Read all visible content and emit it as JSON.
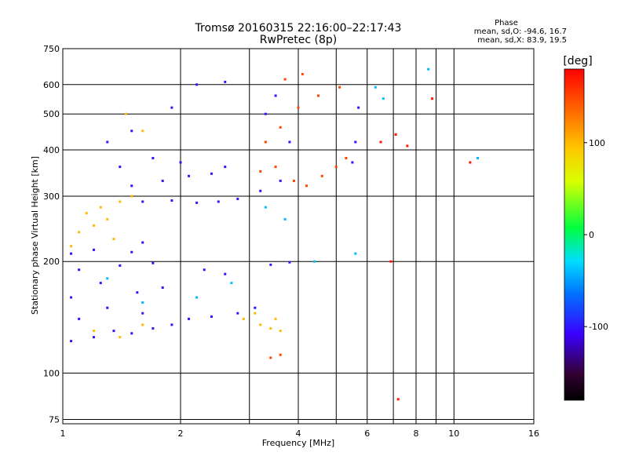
{
  "chart_data": {
    "type": "scatter",
    "title": "Tromsø 20160315 22:16:00–22:17:43",
    "subtitle": "RwPretec (8p)",
    "xlabel": "Frequency [MHz]",
    "ylabel": "Stationary phase Virtual Height [km]",
    "x_scale": "log",
    "y_scale": "log",
    "xlim": [
      1,
      16
    ],
    "ylim": [
      73,
      750
    ],
    "x_ticks": [
      "1",
      "2",
      "4",
      "6",
      "8",
      "10",
      "16"
    ],
    "y_ticks": [
      "75",
      "100",
      "200",
      "300",
      "400",
      "500",
      "600",
      "750"
    ],
    "phase_header": "Phase",
    "phase_stats": [
      "mean, sd,O: -94.6, 16.7",
      "mean, sd,X: 83.9, 19.5"
    ],
    "colorbar": {
      "label": "[deg]",
      "range": [
        -180,
        180
      ],
      "ticks": [
        "100",
        "0",
        "-100"
      ],
      "tick_values": [
        100,
        0,
        -100
      ]
    },
    "clusters": [
      {
        "phase": -100,
        "points": [
          [
            1.05,
            122
          ],
          [
            1.2,
            125
          ],
          [
            1.35,
            130
          ],
          [
            1.5,
            128
          ],
          [
            1.7,
            132
          ],
          [
            1.9,
            135
          ],
          [
            1.1,
            140
          ],
          [
            1.3,
            150
          ],
          [
            1.6,
            145
          ],
          [
            1.05,
            160
          ],
          [
            1.25,
            175
          ],
          [
            1.55,
            165
          ],
          [
            1.8,
            170
          ],
          [
            1.1,
            190
          ],
          [
            1.4,
            195
          ],
          [
            1.7,
            198
          ],
          [
            1.05,
            210
          ],
          [
            1.2,
            215
          ],
          [
            1.5,
            212
          ],
          [
            1.6,
            225
          ],
          [
            2.1,
            140
          ],
          [
            2.4,
            142
          ],
          [
            2.8,
            145
          ],
          [
            3.1,
            150
          ],
          [
            2.3,
            190
          ],
          [
            2.6,
            185
          ],
          [
            3.4,
            196
          ],
          [
            3.8,
            199
          ]
        ]
      },
      {
        "phase": -100,
        "points": [
          [
            1.6,
            290
          ],
          [
            1.9,
            292
          ],
          [
            2.2,
            288
          ],
          [
            2.5,
            290
          ],
          [
            2.8,
            295
          ],
          [
            3.2,
            310
          ],
          [
            3.6,
            330
          ],
          [
            1.5,
            320
          ],
          [
            1.8,
            330
          ],
          [
            2.1,
            340
          ],
          [
            2.4,
            345
          ],
          [
            1.4,
            360
          ],
          [
            1.7,
            380
          ],
          [
            2.0,
            370
          ],
          [
            2.6,
            360
          ],
          [
            1.3,
            420
          ],
          [
            1.5,
            450
          ],
          [
            1.9,
            520
          ],
          [
            2.2,
            600
          ],
          [
            2.6,
            610
          ],
          [
            3.3,
            500
          ],
          [
            3.5,
            560
          ],
          [
            3.8,
            420
          ],
          [
            5.5,
            370
          ],
          [
            5.6,
            420
          ],
          [
            5.7,
            520
          ]
        ]
      },
      {
        "phase": 100,
        "points": [
          [
            1.1,
            240
          ],
          [
            1.2,
            250
          ],
          [
            1.3,
            260
          ],
          [
            1.15,
            270
          ],
          [
            1.25,
            280
          ],
          [
            1.35,
            230
          ],
          [
            1.05,
            220
          ],
          [
            1.4,
            290
          ],
          [
            1.5,
            300
          ],
          [
            1.6,
            450
          ],
          [
            1.45,
            500
          ],
          [
            1.2,
            130
          ],
          [
            1.4,
            125
          ],
          [
            1.6,
            135
          ],
          [
            2.9,
            140
          ],
          [
            3.2,
            135
          ],
          [
            3.4,
            132
          ],
          [
            3.6,
            130
          ],
          [
            3.1,
            145
          ],
          [
            3.5,
            140
          ]
        ]
      },
      {
        "phase": 150,
        "points": [
          [
            3.2,
            350
          ],
          [
            3.5,
            360
          ],
          [
            3.9,
            330
          ],
          [
            4.2,
            320
          ],
          [
            4.6,
            340
          ],
          [
            5.0,
            360
          ],
          [
            5.3,
            380
          ],
          [
            3.3,
            420
          ],
          [
            3.6,
            460
          ],
          [
            4.0,
            520
          ],
          [
            4.5,
            560
          ],
          [
            5.1,
            590
          ],
          [
            3.7,
            620
          ],
          [
            4.1,
            640
          ],
          [
            3.4,
            110
          ],
          [
            3.6,
            112
          ]
        ]
      },
      {
        "phase": -40,
        "points": [
          [
            1.3,
            180
          ],
          [
            1.6,
            155
          ],
          [
            2.2,
            160
          ],
          [
            2.7,
            175
          ],
          [
            6.3,
            590
          ],
          [
            6.6,
            550
          ],
          [
            3.3,
            280
          ],
          [
            3.7,
            260
          ],
          [
            4.4,
            200
          ],
          [
            5.6,
            210
          ],
          [
            8.6,
            660
          ],
          [
            11.5,
            380
          ]
        ]
      },
      {
        "phase": 170,
        "points": [
          [
            6.5,
            420
          ],
          [
            7.1,
            440
          ],
          [
            7.6,
            410
          ],
          [
            8.8,
            550
          ],
          [
            6.9,
            200
          ],
          [
            7.2,
            85
          ],
          [
            11.0,
            370
          ]
        ]
      }
    ]
  }
}
